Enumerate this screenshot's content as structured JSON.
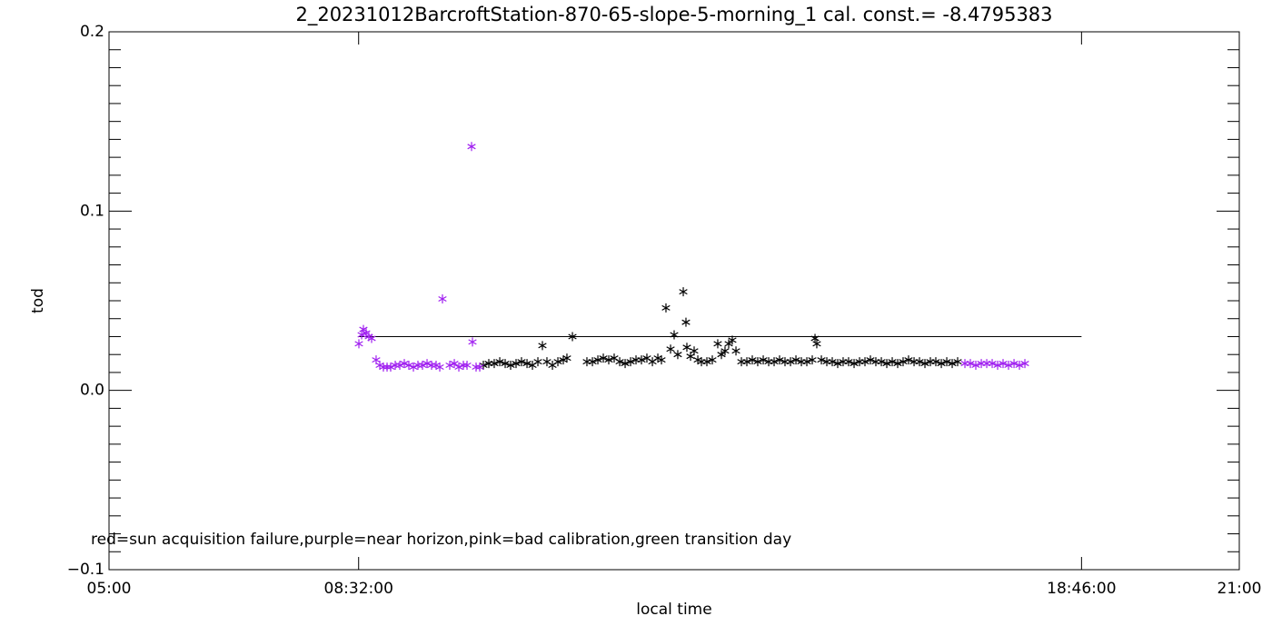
{
  "chart_data": {
    "type": "scatter",
    "title": "2_20231012BarcroftStation-870-65-slope-5-morning_1 cal. const.= -8.4795383",
    "xlabel": "local time",
    "ylabel": "tod",
    "annotation": "red=sun acquisition failure,purple=near horizon,pink=bad calibration,green transition day",
    "xlim": [
      5,
      21
    ],
    "ylim": [
      -0.1,
      0.2
    ],
    "xticks": [
      {
        "value": 5,
        "label": "05:00"
      },
      {
        "value": 8.5333,
        "label": "08:32:00"
      },
      {
        "value": 18.7667,
        "label": "18:46:00"
      },
      {
        "value": 21,
        "label": "21:00"
      }
    ],
    "yticks": [
      {
        "value": -0.1,
        "label": "−0.1"
      },
      {
        "value": 0,
        "label": "0.0"
      },
      {
        "value": 0.1,
        "label": "0.1"
      },
      {
        "value": 0.2,
        "label": "0.2"
      }
    ],
    "yminorticks": [
      -0.09,
      -0.08,
      -0.07,
      -0.06,
      -0.05,
      -0.04,
      -0.03,
      -0.02,
      -0.01,
      0.01,
      0.02,
      0.03,
      0.04,
      0.05,
      0.06,
      0.07,
      0.08,
      0.09,
      0.11,
      0.12,
      0.13,
      0.14,
      0.15,
      0.16,
      0.17,
      0.18,
      0.19
    ],
    "reference_line": {
      "color": "#000000",
      "x": [
        8.5333,
        18.7667
      ],
      "values": [
        0.03,
        0.03
      ]
    },
    "series": [
      {
        "color": "#000000",
        "x": [
          10.299,
          10.376,
          10.453,
          10.531,
          10.608,
          10.685,
          10.762,
          10.839,
          10.917,
          10.994,
          11.071,
          11.135,
          11.199,
          11.277,
          11.354,
          11.431,
          11.482,
          11.56,
          11.765,
          11.843,
          11.92,
          11.997,
          12.074,
          12.151,
          12.229,
          12.306,
          12.383,
          12.46,
          12.537,
          12.614,
          12.692,
          12.769,
          12.82,
          12.884,
          12.949,
          13.0,
          13.051,
          13.129,
          13.167,
          13.18,
          13.232,
          13.283,
          13.335,
          13.386,
          13.463,
          13.54,
          13.617,
          13.669,
          13.72,
          13.772,
          13.823,
          13.875,
          13.952,
          14.029,
          14.106,
          14.183,
          14.261,
          14.338,
          14.415,
          14.492,
          14.569,
          14.647,
          14.724,
          14.801,
          14.878,
          14.955,
          14.994,
          15.019,
          15.084,
          15.161,
          15.238,
          15.315,
          15.392,
          15.469,
          15.547,
          15.624,
          15.701,
          15.778,
          15.855,
          15.933,
          16.01,
          16.087,
          16.164,
          16.241,
          16.318,
          16.396,
          16.473,
          16.55,
          16.627,
          16.704,
          16.782,
          16.859,
          16.936,
          17.013
        ],
        "values": [
          0.014,
          0.015,
          0.015,
          0.016,
          0.015,
          0.014,
          0.015,
          0.016,
          0.015,
          0.014,
          0.016,
          0.025,
          0.016,
          0.014,
          0.016,
          0.017,
          0.018,
          0.03,
          0.016,
          0.016,
          0.017,
          0.018,
          0.017,
          0.018,
          0.016,
          0.015,
          0.016,
          0.017,
          0.017,
          0.018,
          0.016,
          0.018,
          0.017,
          0.046,
          0.023,
          0.031,
          0.02,
          0.055,
          0.038,
          0.024,
          0.019,
          0.022,
          0.017,
          0.016,
          0.016,
          0.017,
          0.026,
          0.02,
          0.022,
          0.026,
          0.028,
          0.022,
          0.016,
          0.016,
          0.017,
          0.016,
          0.017,
          0.016,
          0.016,
          0.017,
          0.016,
          0.016,
          0.017,
          0.016,
          0.016,
          0.017,
          0.029,
          0.026,
          0.017,
          0.016,
          0.016,
          0.015,
          0.016,
          0.016,
          0.015,
          0.016,
          0.016,
          0.017,
          0.016,
          0.016,
          0.015,
          0.016,
          0.015,
          0.016,
          0.017,
          0.016,
          0.016,
          0.015,
          0.016,
          0.016,
          0.015,
          0.016,
          0.015,
          0.016
        ]
      },
      {
        "color": "#a020f0",
        "x": [
          8.537,
          8.576,
          8.601,
          8.64,
          8.678,
          8.717,
          8.781,
          8.833,
          8.884,
          8.936,
          8.987,
          9.052,
          9.116,
          9.18,
          9.244,
          9.309,
          9.373,
          9.437,
          9.502,
          9.566,
          9.63,
          9.682,
          9.72,
          9.823,
          9.888,
          9.952,
          10.016,
          10.068,
          10.132,
          10.145,
          10.196,
          10.248,
          17.116,
          17.193,
          17.27,
          17.348,
          17.425,
          17.502,
          17.579,
          17.656,
          17.733,
          17.811,
          17.888,
          17.965
        ],
        "values": [
          0.026,
          0.031,
          0.034,
          0.032,
          0.03,
          0.029,
          0.017,
          0.014,
          0.013,
          0.013,
          0.013,
          0.014,
          0.014,
          0.015,
          0.014,
          0.013,
          0.014,
          0.014,
          0.015,
          0.014,
          0.014,
          0.013,
          0.051,
          0.014,
          0.015,
          0.013,
          0.014,
          0.014,
          0.136,
          0.027,
          0.013,
          0.013,
          0.015,
          0.015,
          0.014,
          0.015,
          0.015,
          0.015,
          0.014,
          0.015,
          0.014,
          0.015,
          0.014,
          0.015
        ]
      }
    ]
  }
}
